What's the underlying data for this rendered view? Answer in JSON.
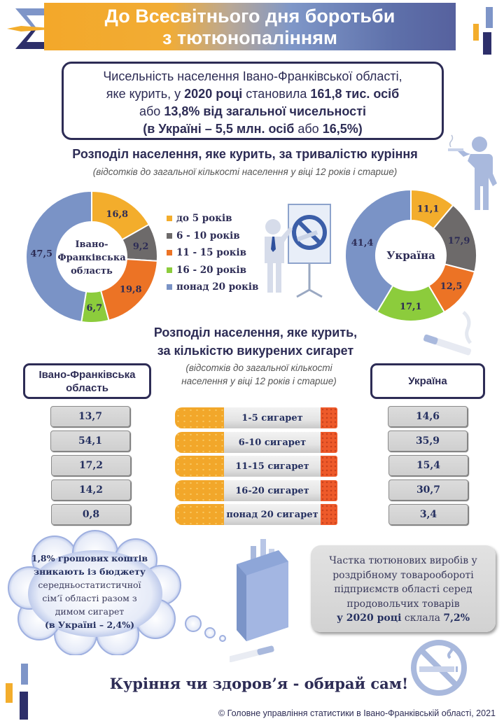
{
  "header": {
    "title_line1": "До Всесвітнього дня боротьби",
    "title_line2": "з тютюнопалінням"
  },
  "summary": {
    "line1": "Чисельність населення Івано-Франківської області,",
    "line2_a": "яке курить, у ",
    "line2_b": "2020 році",
    "line2_c": " становила ",
    "line2_d": "161,8 тис. осіб",
    "line3_a": "або ",
    "line3_b": "13,8% від загальної чисельності",
    "line4_a": "(в Україні – 5,5 млн. осіб",
    "line4_b": " або ",
    "line4_c": "16,5%)"
  },
  "section1": {
    "title": "Розподіл населення, яке курить, за тривалістю куріння",
    "subtitle": "(відсотків до загальної кількості населення у віці 12 років і старше)"
  },
  "section2": {
    "title_line1": "Розподіл населення, яке курить,",
    "title_line2": "за кількістю викурених сигарет",
    "subtitle_line1": "(відсотків до загальної кількості",
    "subtitle_line2": "населення у віці 12 років і старше)",
    "header_region_line1": "Івано-Франківська",
    "header_region_line2": "область",
    "header_ukraine": "Україна"
  },
  "chart_data": [
    {
      "type": "pie",
      "variant": "donut",
      "title": "Івано-Франківська область",
      "center_label": [
        "Івано-",
        "Франківська",
        "область"
      ],
      "categories": [
        "до 5 років",
        "6 - 10 років",
        "11 - 15 років",
        "16 - 20 років",
        "понад 20 років"
      ],
      "values": [
        16.8,
        9.2,
        19.8,
        6.7,
        47.5
      ],
      "labels": [
        "16,8",
        "9,2",
        "19,8",
        "6,7",
        "47,5"
      ],
      "colors": [
        "#f3ad2c",
        "#6d6a6a",
        "#ec7325",
        "#8ccc3c",
        "#7a93c6"
      ],
      "legend": "right"
    },
    {
      "type": "pie",
      "variant": "donut",
      "title": "Україна",
      "center_label": [
        "Україна"
      ],
      "categories": [
        "до 5 років",
        "6 - 10 років",
        "11 - 15 років",
        "16 - 20 років",
        "понад 20 років"
      ],
      "values": [
        11.1,
        17.9,
        12.5,
        17.1,
        41.4
      ],
      "labels": [
        "11,1",
        "17,9",
        "12,5",
        "17,1",
        "41,4"
      ],
      "colors": [
        "#f3ad2c",
        "#6d6a6a",
        "#ec7325",
        "#8ccc3c",
        "#7a93c6"
      ]
    },
    {
      "type": "table",
      "title": "Розподіл населення, яке курить, за кількістю викурених сигарет",
      "categories": [
        "1-5 сигарет",
        "6-10 сигарет",
        "11-15 сигарет",
        "16-20 сигарет",
        "понад 20 сигарет"
      ],
      "series": [
        {
          "name": "Івано-Франківська область",
          "values": [
            13.7,
            54.1,
            17.2,
            14.2,
            0.8
          ],
          "labels": [
            "13,7",
            "54,1",
            "17,2",
            "14,2",
            "0,8"
          ]
        },
        {
          "name": "Україна",
          "values": [
            14.6,
            35.9,
            15.4,
            30.7,
            3.4
          ],
          "labels": [
            "14,6",
            "35,9",
            "15,4",
            "30,7",
            "3,4"
          ]
        }
      ]
    }
  ],
  "legend": [
    {
      "label": "до 5 років",
      "color": "#f3ad2c"
    },
    {
      "label": "6 - 10 років",
      "color": "#6d6a6a"
    },
    {
      "label": "11 - 15 років",
      "color": "#ec7325"
    },
    {
      "label": "16 - 20 років",
      "color": "#8ccc3c"
    },
    {
      "label": "понад 20 років",
      "color": "#7a93c6"
    }
  ],
  "cigarettes": {
    "rows": [
      {
        "label": "1-5 сигарет",
        "region": "13,7",
        "ukraine": "14,6"
      },
      {
        "label": "6-10 сигарет",
        "region": "54,1",
        "ukraine": "35,9"
      },
      {
        "label": "11-15 сигарет",
        "region": "17,2",
        "ukraine": "15,4"
      },
      {
        "label": "16-20 сигарет",
        "region": "14,2",
        "ukraine": "30,7"
      },
      {
        "label": "понад 20 сигарет",
        "region": "0,8",
        "ukraine": "3,4"
      }
    ]
  },
  "cloud": {
    "bold1": "1,8% грошових коштів",
    "bold2": "зникають із бюджету",
    "line3": "середньостатистичної",
    "line4": "сім’ї області разом з",
    "line5": "димом сигарет",
    "bold6": "(в Україні – 2,4%)"
  },
  "share": {
    "line1": "Частка тютюнових виробів у",
    "line2": "роздрібному товарообороті",
    "line3": "підприємств області серед",
    "line4": "продовольчих товарів",
    "line5_bold": "у 2020 році",
    "line5_mid": " склала ",
    "line5_val": "7,2%"
  },
  "slogan": "Куріння чи здоров’я - обирай сам!",
  "footer": "© Головне управління статистики в Івано-Франківській області, 2021",
  "colors": {
    "navy": "#2d2c55",
    "orange": "#f3ad2c",
    "blue": "#7a93c6",
    "icon_blue": "#a9b9dd"
  }
}
